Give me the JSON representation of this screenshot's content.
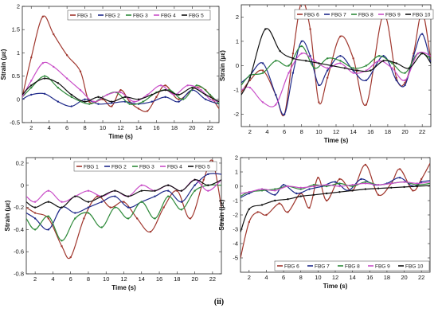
{
  "caption": "(ii)",
  "colors": {
    "FBG 1": "#a0372e",
    "FBG 2": "#1f2a8a",
    "FBG 3": "#2e8a3a",
    "FBG 4": "#c94fc8",
    "FBG 5": "#111111",
    "FBG 6": "#a0372e",
    "FBG 7": "#1f2a8a",
    "FBG 8": "#2e8a3a",
    "FBG 9": "#c94fc8",
    "FBG 10": "#111111"
  },
  "chart_data": [
    {
      "type": "line",
      "xlabel": "Time (s)",
      "ylabel": "Strain (με)",
      "xlim": [
        1,
        23
      ],
      "ylim": [
        -0.5,
        2
      ],
      "xticks": [
        2,
        4,
        6,
        8,
        10,
        12,
        14,
        16,
        18,
        20,
        22
      ],
      "yticks": [
        -0.5,
        0,
        0.5,
        1,
        1.5,
        2
      ],
      "ytick_labels": [
        "-0.5",
        "0",
        "0.5",
        "1",
        "1.5",
        "2"
      ],
      "legend": "top-right",
      "grid": false,
      "series": [
        {
          "name": "FBG 1",
          "x": [
            1,
            2,
            3.3,
            4.5,
            6,
            7.5,
            8.5,
            10,
            11,
            12,
            13,
            14,
            15,
            16,
            17,
            18.5,
            20.3,
            21.5,
            23
          ],
          "y": [
            0.05,
            0.9,
            1.78,
            1.4,
            0.95,
            0.6,
            -0.05,
            0.0,
            -0.15,
            0.2,
            -0.05,
            -0.2,
            -0.25,
            0.05,
            0.3,
            0.0,
            0.25,
            0.2,
            -0.2
          ]
        },
        {
          "name": "FBG 2",
          "x": [
            1,
            2,
            3.5,
            5,
            6.5,
            8,
            9.5,
            11,
            12.5,
            14,
            15.5,
            17,
            18.5,
            20,
            21.5,
            23
          ],
          "y": [
            0.0,
            0.1,
            0.12,
            -0.05,
            -0.15,
            0.0,
            -0.1,
            -0.08,
            -0.05,
            -0.1,
            -0.05,
            0.05,
            -0.05,
            0.2,
            0.0,
            -0.1
          ]
        },
        {
          "name": "FBG 3",
          "x": [
            1,
            2,
            3.5,
            5,
            6.5,
            8.5,
            10,
            11.5,
            13,
            14.5,
            16,
            17.5,
            19,
            20.5,
            22,
            23
          ],
          "y": [
            0.05,
            0.25,
            0.5,
            0.25,
            0.05,
            -0.1,
            0.05,
            0.15,
            -0.1,
            -0.05,
            0.15,
            0.2,
            0.0,
            0.3,
            0.1,
            -0.1
          ]
        },
        {
          "name": "FBG 4",
          "x": [
            1,
            2,
            3.3,
            4.5,
            6,
            7.5,
            9,
            10.5,
            12,
            13.5,
            15,
            16.5,
            18,
            19.5,
            21,
            22,
            23
          ],
          "y": [
            0.05,
            0.4,
            0.78,
            0.7,
            0.45,
            0.2,
            -0.05,
            0.1,
            0.15,
            -0.05,
            0.1,
            0.3,
            0.1,
            0.3,
            0.2,
            0.0,
            -0.05
          ]
        },
        {
          "name": "FBG 5",
          "x": [
            1,
            2,
            3.5,
            5,
            6.5,
            8,
            9.5,
            11,
            12.5,
            14,
            15.5,
            17,
            18.5,
            20,
            21.5,
            23
          ],
          "y": [
            0.1,
            0.3,
            0.45,
            0.35,
            0.1,
            -0.05,
            0.05,
            -0.05,
            0.05,
            0.0,
            0.1,
            0.2,
            0.1,
            0.25,
            0.1,
            -0.05
          ]
        }
      ]
    },
    {
      "type": "line",
      "xlabel": "Time (s)",
      "ylabel": "Strain (με)",
      "xlim": [
        1,
        23
      ],
      "ylim": [
        -2.5,
        2.5
      ],
      "xticks": [
        2,
        4,
        6,
        8,
        10,
        12,
        14,
        16,
        18,
        20,
        22
      ],
      "yticks": [
        -2,
        -1,
        0,
        1,
        2
      ],
      "ytick_labels": [
        "-2",
        "-1",
        "0",
        "1",
        "2"
      ],
      "legend": "top-right",
      "grid": false,
      "series": [
        {
          "name": "FBG 6",
          "x": [
            1,
            2,
            3.5,
            5,
            6,
            7,
            8,
            9,
            10,
            11,
            12.5,
            14,
            15.5,
            17.5,
            19,
            20,
            21,
            22,
            23
          ],
          "y": [
            -1.1,
            -0.6,
            -0.2,
            -1.2,
            -2.0,
            0.5,
            2.6,
            1.5,
            -1.5,
            -0.5,
            1.2,
            0.3,
            -1.6,
            2.1,
            -0.5,
            -0.7,
            0.5,
            2.2,
            0.2
          ]
        },
        {
          "name": "FBG 7",
          "x": [
            1,
            2,
            3.5,
            5,
            6,
            7,
            8,
            9,
            10,
            11,
            12.5,
            14,
            15.5,
            17.5,
            19,
            20,
            21,
            22,
            23
          ],
          "y": [
            -0.7,
            -0.4,
            0.1,
            -1.2,
            -2.0,
            -0.3,
            1.0,
            0.4,
            -0.8,
            -0.2,
            0.4,
            -0.2,
            -0.6,
            0.4,
            -0.6,
            -0.8,
            0.4,
            1.3,
            0.1
          ]
        },
        {
          "name": "FBG 8",
          "x": [
            1,
            2,
            3.5,
            5,
            6.5,
            8,
            9.5,
            11,
            12.5,
            14,
            15.5,
            17,
            18.5,
            20,
            21.5,
            23
          ],
          "y": [
            -0.8,
            -0.4,
            -0.3,
            0.2,
            0.0,
            0.8,
            -0.1,
            0.3,
            0.2,
            -0.1,
            0.0,
            0.4,
            0.1,
            -0.3,
            0.5,
            0.3
          ]
        },
        {
          "name": "FBG 9",
          "x": [
            1,
            2,
            3.5,
            5,
            6.5,
            8,
            9.5,
            11,
            12.5,
            14,
            15.5,
            17,
            18.5,
            20,
            21.5,
            23
          ],
          "y": [
            -1.0,
            -0.9,
            -1.5,
            -1.6,
            -0.3,
            0.5,
            0.2,
            -0.1,
            0.1,
            -0.3,
            -0.2,
            0.2,
            -0.1,
            -0.6,
            0.5,
            0.4
          ]
        },
        {
          "name": "FBG 10",
          "x": [
            1,
            2,
            3.8,
            5.5,
            7,
            8.5,
            10,
            11.5,
            13,
            14.5,
            16,
            17.5,
            19,
            20.5,
            22,
            23
          ],
          "y": [
            -1.2,
            -0.5,
            1.5,
            0.6,
            0.3,
            0.2,
            0.1,
            0.0,
            -0.1,
            -0.2,
            -0.2,
            0.2,
            0.1,
            -0.1,
            0.5,
            0.1
          ]
        }
      ]
    },
    {
      "type": "line",
      "xlabel": "Time (s)",
      "ylabel": "Strain (με)",
      "xlim": [
        1,
        23
      ],
      "ylim": [
        -0.8,
        0.25
      ],
      "xticks": [
        2,
        4,
        6,
        8,
        10,
        12,
        14,
        16,
        18,
        20,
        22
      ],
      "yticks": [
        -0.8,
        -0.6,
        -0.4,
        -0.2,
        0,
        0.2
      ],
      "ytick_labels": [
        "-0.8",
        "-0.6",
        "-0.4",
        "-0.2",
        "0",
        "0.2"
      ],
      "legend": "top",
      "grid": false,
      "series": [
        {
          "name": "FBG 1",
          "x": [
            1,
            2,
            3.5,
            5,
            6,
            7.5,
            9,
            10.5,
            12,
            13.5,
            15,
            16.5,
            18,
            19.5,
            21,
            22,
            23
          ],
          "y": [
            -0.2,
            -0.25,
            -0.3,
            -0.55,
            -0.65,
            -0.3,
            -0.1,
            -0.2,
            -0.15,
            -0.3,
            -0.42,
            -0.2,
            -0.05,
            -0.3,
            0.05,
            0.22,
            -0.2
          ]
        },
        {
          "name": "FBG 2",
          "x": [
            1,
            2,
            3.5,
            5,
            6.5,
            8,
            9.5,
            11,
            12.5,
            14,
            15.5,
            17,
            18.5,
            20,
            21.5,
            23
          ],
          "y": [
            -0.25,
            -0.3,
            -0.4,
            -0.2,
            -0.25,
            -0.2,
            -0.15,
            -0.1,
            -0.2,
            -0.15,
            -0.1,
            -0.05,
            -0.15,
            0.0,
            0.1,
            0.1
          ]
        },
        {
          "name": "FBG 3",
          "x": [
            1,
            2,
            3.5,
            5,
            6.5,
            8,
            9.5,
            11,
            12.5,
            14,
            15.5,
            17,
            18.5,
            20,
            21.5,
            23
          ],
          "y": [
            -0.3,
            -0.4,
            -0.28,
            -0.5,
            -0.3,
            -0.25,
            -0.38,
            -0.2,
            -0.3,
            -0.15,
            -0.3,
            -0.1,
            -0.22,
            -0.05,
            0.0,
            0.0
          ]
        },
        {
          "name": "FBG 4",
          "x": [
            1,
            2,
            3.5,
            5,
            6.5,
            8,
            9.5,
            11,
            12.5,
            14,
            15.5,
            17,
            18.5,
            20,
            21.5,
            23
          ],
          "y": [
            -0.1,
            -0.15,
            -0.05,
            -0.15,
            -0.1,
            -0.05,
            -0.1,
            -0.05,
            -0.1,
            0.0,
            -0.05,
            0.0,
            -0.05,
            0.05,
            -0.05,
            0.05
          ]
        },
        {
          "name": "FBG 5",
          "x": [
            1,
            2,
            3.5,
            5,
            6.5,
            8,
            9.5,
            11,
            12.5,
            14,
            15.5,
            17,
            18.5,
            20,
            21.5,
            23
          ],
          "y": [
            -0.15,
            -0.2,
            -0.15,
            -0.2,
            -0.1,
            -0.15,
            -0.1,
            -0.05,
            -0.1,
            -0.05,
            -0.05,
            0.0,
            -0.05,
            0.05,
            0.0,
            0.05
          ]
        }
      ]
    },
    {
      "type": "line",
      "xlabel": "Time (s)",
      "ylabel": "Strain (με)",
      "xlim": [
        1,
        23
      ],
      "ylim": [
        -6,
        2
      ],
      "xticks": [
        2,
        4,
        6,
        8,
        10,
        12,
        14,
        16,
        18,
        20,
        22
      ],
      "yticks": [
        -5,
        -4,
        -3,
        -2,
        -1,
        0,
        1,
        2
      ],
      "ytick_labels": [
        "-5",
        "-4",
        "-3",
        "-2",
        "-1",
        "0",
        "1",
        "2"
      ],
      "legend": "bottom-right",
      "grid": false,
      "series": [
        {
          "name": "FBG 6",
          "x": [
            1,
            2,
            3,
            4,
            5.5,
            6.5,
            8,
            9,
            10,
            11,
            12.5,
            14,
            15.5,
            17,
            18.5,
            19.5,
            21,
            22,
            23
          ],
          "y": [
            -5.0,
            -2.5,
            -1.8,
            -2.0,
            -1.2,
            -1.8,
            -0.5,
            -1.5,
            0.6,
            -1.0,
            0.5,
            -0.3,
            1.5,
            -0.6,
            0.2,
            1.2,
            -0.3,
            0.5,
            1.6
          ]
        },
        {
          "name": "FBG 7",
          "x": [
            1,
            2,
            3.5,
            5,
            6,
            7.5,
            9,
            10.5,
            12,
            13.5,
            15,
            16.5,
            18,
            19.5,
            21,
            22,
            23
          ],
          "y": [
            -0.8,
            -0.5,
            -0.2,
            -0.6,
            0.1,
            -0.5,
            -0.2,
            0.0,
            0.3,
            -0.3,
            0.5,
            0.1,
            0.2,
            0.6,
            0.0,
            0.3,
            0.4
          ]
        },
        {
          "name": "FBG 8",
          "x": [
            1,
            2,
            3.5,
            5,
            6.5,
            8,
            9.5,
            11,
            12.5,
            14,
            15.5,
            17,
            18.5,
            20,
            21.5,
            23
          ],
          "y": [
            -0.7,
            -0.4,
            -0.3,
            -0.2,
            0.0,
            -0.2,
            0.1,
            0.0,
            0.2,
            0.0,
            0.3,
            0.1,
            0.2,
            0.3,
            0.1,
            0.2
          ]
        },
        {
          "name": "FBG 9",
          "x": [
            1,
            2,
            3.5,
            5,
            6.5,
            8,
            9.5,
            11,
            12.5,
            14,
            15.5,
            17,
            18.5,
            20,
            21.5,
            23
          ],
          "y": [
            -0.5,
            -0.4,
            -0.2,
            -0.3,
            0.0,
            -0.1,
            0.0,
            0.1,
            0.0,
            0.1,
            0.2,
            0.1,
            0.2,
            0.3,
            0.2,
            0.3
          ]
        },
        {
          "name": "FBG 10",
          "x": [
            1,
            2,
            3.5,
            5,
            6.5,
            8,
            9.5,
            11,
            12.5,
            14,
            15.5,
            17,
            18.5,
            20,
            21.5,
            23
          ],
          "y": [
            -3.2,
            -1.6,
            -1.3,
            -1.0,
            -0.9,
            -0.7,
            -0.6,
            -0.5,
            -0.4,
            -0.3,
            -0.2,
            -0.15,
            -0.1,
            -0.05,
            0.0,
            0.05
          ]
        }
      ]
    }
  ]
}
